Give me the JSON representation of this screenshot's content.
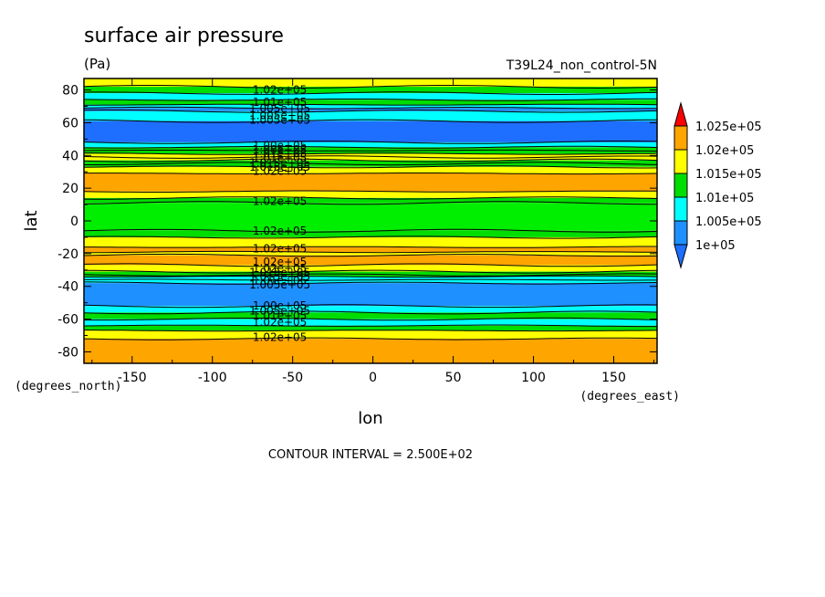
{
  "chart_data": {
    "type": "heatmap",
    "title": "surface air pressure",
    "units": "(Pa)",
    "run_label": "T39L24_non_control-5N",
    "xlabel": "lon",
    "ylabel": "lat",
    "x_units": "(degrees_east)",
    "y_units": "(degrees_north)",
    "xlim": [
      -180,
      177
    ],
    "ylim": [
      -87,
      87
    ],
    "x_ticks": [
      -150,
      -100,
      -50,
      0,
      50,
      100,
      150
    ],
    "x_tick_labels": [
      "-150",
      "-100",
      "-50",
      "0",
      "50",
      "100",
      "150"
    ],
    "y_ticks": [
      80,
      60,
      40,
      20,
      0,
      -20,
      -40,
      -60,
      -80
    ],
    "y_tick_labels": [
      "80",
      "60",
      "40",
      "20",
      "0",
      "-20",
      "-40",
      "-60",
      "-80"
    ],
    "contour_interval_text": "CONTOUR INTERVAL = 2.500E+02",
    "colorbar": {
      "levels": [
        100000,
        100500,
        101000,
        101500,
        102000,
        102500
      ],
      "labels": [
        "1e+05",
        "1.005e+05",
        "1.01e+05",
        "1.015e+05",
        "1.02e+05",
        "1.025e+05"
      ],
      "colors": [
        "#1e90ff",
        "#00ffff",
        "#00dd00",
        "#ffff00",
        "#ffa500",
        "#ff0000"
      ],
      "under_color": "#1e6fff",
      "over_color": "#ff0000"
    },
    "bands": [
      {
        "lat": [
          82,
          87
        ],
        "color": "#ffff00"
      },
      {
        "lat": [
          78,
          82
        ],
        "color": "#00dd00"
      },
      {
        "lat": [
          74,
          78
        ],
        "color": "#00ffff"
      },
      {
        "lat": [
          71,
          74
        ],
        "color": "#00dd00"
      },
      {
        "lat": [
          69,
          71
        ],
        "color": "#00ffff"
      },
      {
        "lat": [
          67,
          69
        ],
        "color": "#1e90ff"
      },
      {
        "lat": [
          61,
          67
        ],
        "color": "#00ffff"
      },
      {
        "lat": [
          48,
          61
        ],
        "color": "#1e6fff"
      },
      {
        "lat": [
          45,
          48
        ],
        "color": "#00ffff"
      },
      {
        "lat": [
          41,
          45
        ],
        "color": "#00dd00"
      },
      {
        "lat": [
          37,
          41
        ],
        "color": "#ffff00"
      },
      {
        "lat": [
          33,
          37
        ],
        "color": "#00dd00"
      },
      {
        "lat": [
          29,
          33
        ],
        "color": "#ffff00"
      },
      {
        "lat": [
          18,
          29
        ],
        "color": "#ffa500"
      },
      {
        "lat": [
          14,
          18
        ],
        "color": "#ffff00"
      },
      {
        "lat": [
          11,
          14
        ],
        "color": "#00dd00"
      },
      {
        "lat": [
          -6,
          11
        ],
        "color": "#00ee00"
      },
      {
        "lat": [
          -10,
          -6
        ],
        "color": "#00dd00"
      },
      {
        "lat": [
          -16,
          -10
        ],
        "color": "#ffff00"
      },
      {
        "lat": [
          -19,
          -16
        ],
        "color": "#ffa500"
      },
      {
        "lat": [
          -21,
          -19
        ],
        "color": "#ffff00"
      },
      {
        "lat": [
          -27,
          -21
        ],
        "color": "#ffa500"
      },
      {
        "lat": [
          -31,
          -27
        ],
        "color": "#ffff00"
      },
      {
        "lat": [
          -34,
          -31
        ],
        "color": "#00dd00"
      },
      {
        "lat": [
          -38,
          -34
        ],
        "color": "#00ffff"
      },
      {
        "lat": [
          -52,
          -38
        ],
        "color": "#1e90ff"
      },
      {
        "lat": [
          -56,
          -52
        ],
        "color": "#00ffff"
      },
      {
        "lat": [
          -60,
          -56
        ],
        "color": "#00dd00"
      },
      {
        "lat": [
          -64,
          -60
        ],
        "color": "#00ffff"
      },
      {
        "lat": [
          -67,
          -64
        ],
        "color": "#00dd00"
      },
      {
        "lat": [
          -72,
          -67
        ],
        "color": "#ffff00"
      },
      {
        "lat": [
          -87,
          -72
        ],
        "color": "#ffa500"
      }
    ],
    "contour_lines_lat": [
      82,
      78,
      74,
      71,
      69,
      67,
      61,
      48,
      45,
      43,
      41,
      39,
      37,
      35,
      33,
      29,
      18,
      14,
      11,
      -6,
      -10,
      -16,
      -19,
      -21,
      -27,
      -31,
      -33,
      -34,
      -36,
      -38,
      -52,
      -56,
      -60,
      -64,
      -67,
      -72
    ],
    "contour_labels": [
      {
        "text": "1.02e+05",
        "lon": -58,
        "lat": 80
      },
      {
        "text": "1.01e+05",
        "lon": -58,
        "lat": 72.5
      },
      {
        "text": "1.005e+05",
        "lon": -58,
        "lat": 68.5
      },
      {
        "text": "1.005e+05",
        "lon": -58,
        "lat": 64.5
      },
      {
        "text": "1.005e+05",
        "lon": -58,
        "lat": 61.5
      },
      {
        "text": "1.00e+05",
        "lon": -58,
        "lat": 46
      },
      {
        "text": "1.00e+05",
        "lon": -58,
        "lat": 43.5
      },
      {
        "text": "1.01e+05",
        "lon": -58,
        "lat": 41
      },
      {
        "text": "1.01e+05",
        "lon": -58,
        "lat": 38.5
      },
      {
        "text": "1.015e+05",
        "lon": -58,
        "lat": 35.5
      },
      {
        "text": "1.015e+05",
        "lon": -58,
        "lat": 33
      },
      {
        "text": "1.02e+05",
        "lon": -58,
        "lat": 30.5
      },
      {
        "text": "1.02e+05",
        "lon": -58,
        "lat": 12
      },
      {
        "text": "1.02e+05",
        "lon": -58,
        "lat": -6
      },
      {
        "text": "1.02e+05",
        "lon": -58,
        "lat": -17
      },
      {
        "text": "1.02e+05",
        "lon": -58,
        "lat": -25
      },
      {
        "text": "1.02e+05",
        "lon": -58,
        "lat": -29
      },
      {
        "text": "1.015e+05",
        "lon": -58,
        "lat": -31.5
      },
      {
        "text": "1.015e+05",
        "lon": -58,
        "lat": -34
      },
      {
        "text": "1.01e+05",
        "lon": -58,
        "lat": -36.5
      },
      {
        "text": "1.005e+05",
        "lon": -58,
        "lat": -39
      },
      {
        "text": "1.00e+05",
        "lon": -58,
        "lat": -52
      },
      {
        "text": "1.005e+05",
        "lon": -58,
        "lat": -55
      },
      {
        "text": "1.01e+05",
        "lon": -58,
        "lat": -58
      },
      {
        "text": "1.02e+05",
        "lon": -58,
        "lat": -62
      },
      {
        "text": "1.02e+05",
        "lon": -58,
        "lat": -71
      }
    ]
  }
}
